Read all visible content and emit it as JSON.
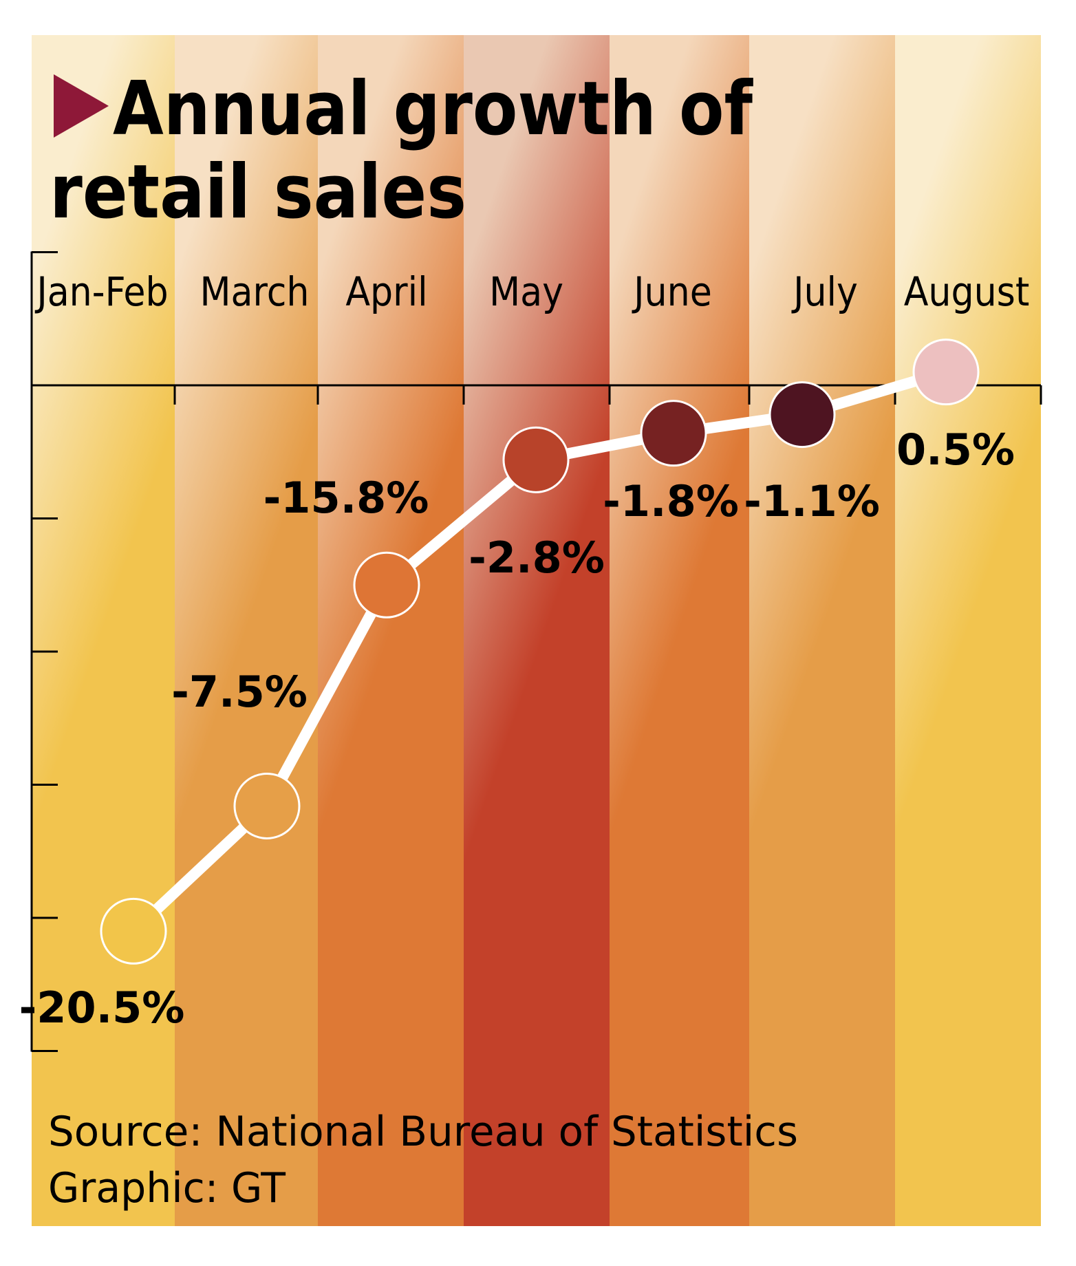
{
  "chart_data": {
    "type": "line",
    "title": "Annual growth of retail sales",
    "title_lines": [
      "Annual growth of",
      "retail sales"
    ],
    "categories": [
      "Jan-Feb",
      "March",
      "April",
      "May",
      "June",
      "July",
      "August"
    ],
    "values": [
      -20.5,
      -15.8,
      -7.5,
      -2.8,
      -1.8,
      -1.1,
      0.5
    ],
    "value_labels": [
      "-20.5%",
      "-15.8%",
      "-7.5%",
      "-2.8%",
      "-1.8%",
      "-1.1%",
      "0.5%"
    ],
    "unit": "%",
    "xlabel": "",
    "ylabel": "",
    "ylim": [
      -25,
      5
    ],
    "y_ticks": [
      5,
      0,
      -5,
      -10,
      -15,
      -20,
      -25
    ],
    "y_tick_labels_shown": false,
    "grid": false,
    "legend": "none",
    "source": "Source: National Bureau of Statistics",
    "credit": "Graphic: GT",
    "colors": {
      "title_marker": "#8E1838",
      "line": "#FFFFFF",
      "axis": "#000000",
      "points": [
        "#F2C54A",
        "#E69F48",
        "#DE7535",
        "#B8432A",
        "#762222",
        "#4E1421",
        "#EDC0C0"
      ],
      "columns_top": [
        "#FAEDCE",
        "#F7E0C4",
        "#F4D7BA",
        "#EAC8B2",
        "#F4D7BA",
        "#F7E0C4",
        "#FAEDCE"
      ],
      "columns_bottom": [
        "#F2C44E",
        "#E59D48",
        "#DE7935",
        "#C3412A",
        "#DE7935",
        "#E59D48",
        "#F2C44E"
      ]
    }
  }
}
